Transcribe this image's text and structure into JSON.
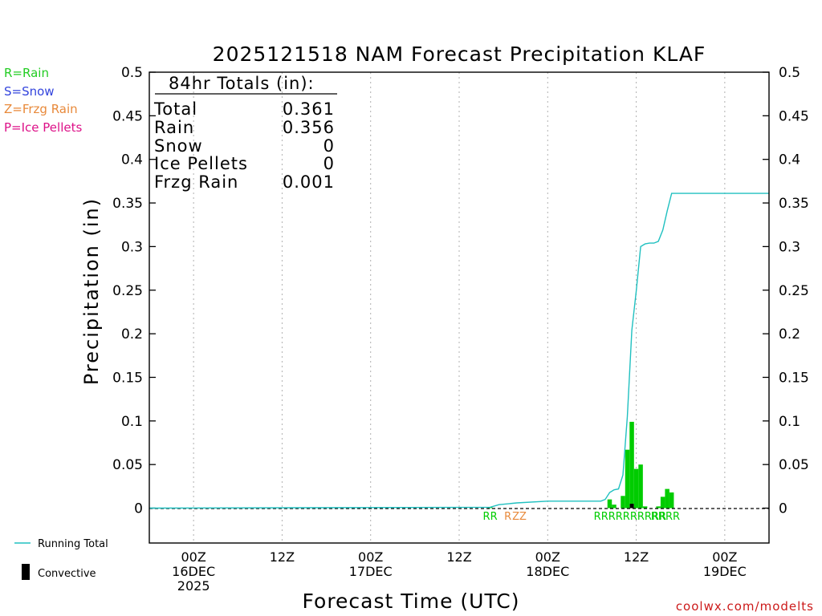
{
  "chart_data": {
    "type": "bar",
    "title": "2025121518 NAM Forecast Precipitation KLAF",
    "xlabel": "Forecast Time (UTC)",
    "ylabel": "Precipitation (in)",
    "ylim": [
      -0.04,
      0.5
    ],
    "yticks": [
      "0",
      "0.05",
      "0.1",
      "0.15",
      "0.2",
      "0.25",
      "0.3",
      "0.35",
      "0.4",
      "0.45",
      "0.5"
    ],
    "xlim_hours": [
      -5,
      65
    ],
    "xticks": [
      {
        "hour": 0,
        "lines": [
          "00Z",
          "16DEC",
          "2025"
        ]
      },
      {
        "hour": 10,
        "lines": [
          "12Z"
        ]
      },
      {
        "hour": 20,
        "lines": [
          "00Z",
          "17DEC"
        ]
      },
      {
        "hour": 30,
        "lines": [
          "12Z"
        ]
      },
      {
        "hour": 40,
        "lines": [
          "00Z",
          "18DEC"
        ]
      },
      {
        "hour": 50,
        "lines": [
          "12Z"
        ]
      },
      {
        "hour": 60,
        "lines": [
          "00Z",
          "19DEC"
        ]
      }
    ],
    "series": [
      {
        "name": "Precipitation",
        "color": "#00cc00",
        "bars": [
          {
            "hour": 33.5,
            "value": 0.001
          },
          {
            "hour": 47.0,
            "value": 0.01
          },
          {
            "hour": 47.5,
            "value": 0.004
          },
          {
            "hour": 48.5,
            "value": 0.014
          },
          {
            "hour": 49.0,
            "value": 0.067
          },
          {
            "hour": 49.5,
            "value": 0.099
          },
          {
            "hour": 50.0,
            "value": 0.045
          },
          {
            "hour": 50.5,
            "value": 0.05
          },
          {
            "hour": 51.0,
            "value": 0.002
          },
          {
            "hour": 52.5,
            "value": 0.002
          },
          {
            "hour": 53.0,
            "value": 0.013
          },
          {
            "hour": 53.5,
            "value": 0.022
          },
          {
            "hour": 54.0,
            "value": 0.018
          }
        ]
      },
      {
        "name": "Convective",
        "color": "#000000",
        "bars": [
          {
            "hour": 49.5,
            "value": 0.005
          }
        ]
      },
      {
        "name": "Running Total",
        "color": "#20c0c0",
        "points": [
          [
            -5,
            0
          ],
          [
            33.5,
            0.001
          ],
          [
            34.5,
            0.004
          ],
          [
            36.5,
            0.006
          ],
          [
            40.0,
            0.008
          ],
          [
            46.0,
            0.008
          ],
          [
            46.5,
            0.01
          ],
          [
            47.0,
            0.018
          ],
          [
            47.5,
            0.021
          ],
          [
            48.0,
            0.022
          ],
          [
            48.5,
            0.038
          ],
          [
            49.0,
            0.105
          ],
          [
            49.5,
            0.204
          ],
          [
            50.0,
            0.249
          ],
          [
            50.5,
            0.3
          ],
          [
            51.0,
            0.303
          ],
          [
            51.5,
            0.304
          ],
          [
            52.0,
            0.304
          ],
          [
            52.5,
            0.306
          ],
          [
            53.0,
            0.319
          ],
          [
            53.5,
            0.341
          ],
          [
            54.0,
            0.361
          ],
          [
            65,
            0.361
          ]
        ]
      }
    ],
    "ptype_labels": [
      {
        "text": "RR",
        "hour": 33.5,
        "color": "#00cc00"
      },
      {
        "text": "R",
        "hour": 35.5,
        "color": "#e8893a"
      },
      {
        "text": "ZZ",
        "hour": 36.8,
        "color": "#e8893a"
      },
      {
        "text": "RRRRRRRRRR",
        "hour": 49.3,
        "color": "#00cc00"
      },
      {
        "text": "RRRR",
        "hour": 53.3,
        "color": "#00cc00"
      }
    ],
    "zero_line": "dashed"
  },
  "totals_box": {
    "header": "84hr Totals (in):",
    "rows": [
      {
        "label": "Total",
        "value": "0.361"
      },
      {
        "label": "Rain",
        "value": "0.356"
      },
      {
        "label": "Snow",
        "value": "0"
      },
      {
        "label": "Ice Pellets",
        "value": "0"
      },
      {
        "label": "Frzg Rain",
        "value": "0.001"
      }
    ]
  },
  "ptype_key": [
    {
      "text": "R=Rain",
      "color": "#22cc22"
    },
    {
      "text": "S=Snow",
      "color": "#3344dd"
    },
    {
      "text": "Z=Frzg Rain",
      "color": "#e8893a"
    },
    {
      "text": "P=Ice Pellets",
      "color": "#dd1188"
    }
  ],
  "legend": {
    "running_total": "Running Total",
    "convective": "Convective"
  },
  "credit": "coolwx.com/modelts",
  "colors": {
    "rain": "#00cc00",
    "running_total": "#20c0c0",
    "convective": "#000000",
    "grid": "#b0b0b0",
    "credit": "#cc1a1a"
  }
}
